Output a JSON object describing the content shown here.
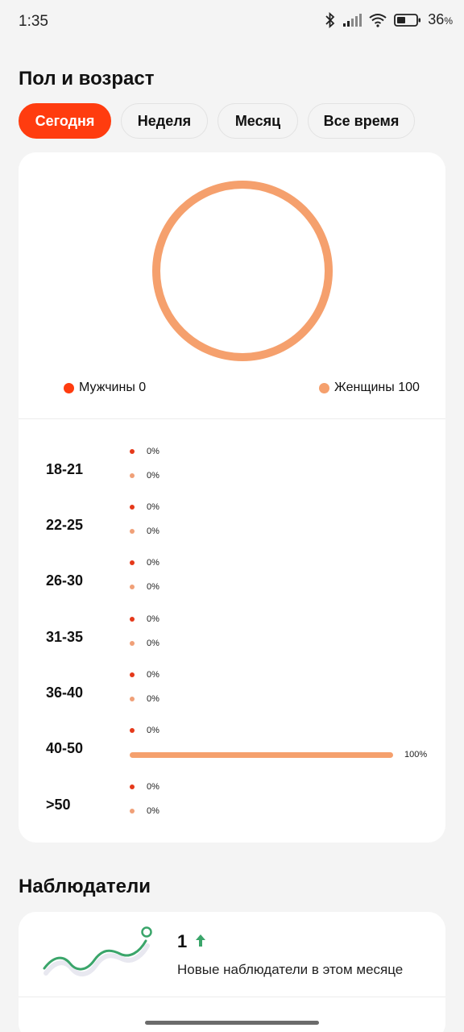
{
  "status": {
    "time": "1:35",
    "battery": "36",
    "battery_unit": "%"
  },
  "gender_section": {
    "title": "Пол и возраст",
    "tabs": [
      {
        "label": "Сегодня",
        "active": true
      },
      {
        "label": "Неделя",
        "active": false
      },
      {
        "label": "Месяц",
        "active": false
      },
      {
        "label": "Все время",
        "active": false
      }
    ],
    "donut": {
      "male_value": 0,
      "female_value": 100
    },
    "legend": {
      "male": "Мужчины 0",
      "female": "Женщины 100"
    },
    "colors": {
      "male": "#e5391a",
      "female": "#f5a06d",
      "accent": "#ff3c0f"
    },
    "age_groups": [
      {
        "label": "18-21",
        "male_pct": "0%",
        "female_pct": "0%",
        "male_value": 0,
        "female_value": 0
      },
      {
        "label": "22-25",
        "male_pct": "0%",
        "female_pct": "0%",
        "male_value": 0,
        "female_value": 0
      },
      {
        "label": "26-30",
        "male_pct": "0%",
        "female_pct": "0%",
        "male_value": 0,
        "female_value": 0
      },
      {
        "label": "31-35",
        "male_pct": "0%",
        "female_pct": "0%",
        "male_value": 0,
        "female_value": 0
      },
      {
        "label": "36-40",
        "male_pct": "0%",
        "female_pct": "0%",
        "male_value": 0,
        "female_value": 0
      },
      {
        "label": "40-50",
        "male_pct": "0%",
        "female_pct": "100%",
        "male_value": 0,
        "female_value": 100
      },
      {
        "label": ">50",
        "male_pct": "0%",
        "female_pct": "0%",
        "male_value": 0,
        "female_value": 0
      }
    ]
  },
  "watchers_section": {
    "title": "Наблюдатели",
    "count": "1",
    "trend_icon": "arrow-up-icon",
    "description": "Новые наблюдатели в этом месяце"
  }
}
